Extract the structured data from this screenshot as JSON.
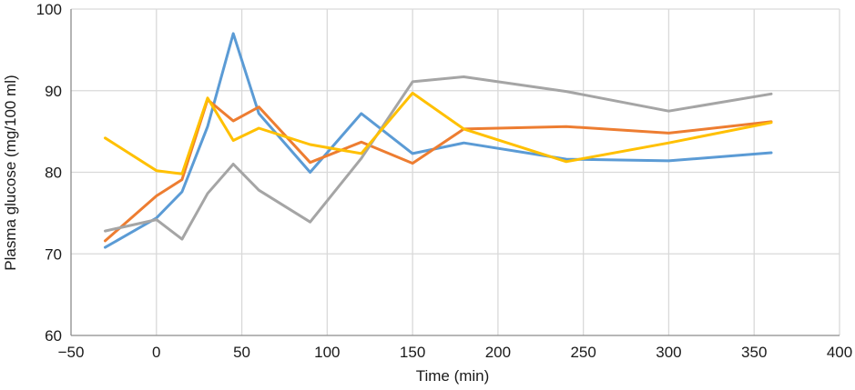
{
  "chart_data": {
    "type": "line",
    "title": "",
    "xlabel": "Time (min)",
    "ylabel": "Plasma glucose (mg/100 ml)",
    "xlim": [
      -50,
      400
    ],
    "ylim": [
      60,
      100
    ],
    "x_ticks": [
      -50,
      0,
      50,
      100,
      150,
      200,
      250,
      300,
      350,
      400
    ],
    "y_ticks": [
      60,
      70,
      80,
      90,
      100
    ],
    "x_tick_labels": [
      "−50",
      "0",
      "50",
      "100",
      "150",
      "200",
      "250",
      "300",
      "350",
      "400"
    ],
    "y_tick_labels": [
      "60",
      "70",
      "80",
      "90",
      "100"
    ],
    "grid": true,
    "legend": "none",
    "series": [
      {
        "color": "#5b9bd5",
        "x": [
          -30,
          0,
          15,
          30,
          45,
          60,
          90,
          120,
          150,
          180,
          240,
          300,
          360
        ],
        "y": [
          70.8,
          74.4,
          77.6,
          85.6,
          97.0,
          87.2,
          80.0,
          87.2,
          82.3,
          83.6,
          81.6,
          81.4,
          82.4
        ]
      },
      {
        "color": "#ed7d31",
        "x": [
          -30,
          0,
          15,
          30,
          45,
          60,
          90,
          120,
          150,
          180,
          240,
          300,
          360
        ],
        "y": [
          71.6,
          77.1,
          79.1,
          88.9,
          86.3,
          88.0,
          81.2,
          83.7,
          81.1,
          85.3,
          85.6,
          84.8,
          86.2
        ]
      },
      {
        "color": "#a5a5a5",
        "x": [
          -30,
          0,
          15,
          30,
          45,
          60,
          90,
          120,
          150,
          180,
          240,
          300,
          360
        ],
        "y": [
          72.8,
          74.2,
          71.8,
          77.4,
          81.0,
          77.8,
          73.9,
          81.7,
          91.1,
          91.7,
          89.9,
          87.5,
          89.6
        ]
      },
      {
        "color": "#ffc000",
        "x": [
          -30,
          0,
          15,
          30,
          45,
          60,
          90,
          120,
          150,
          180,
          240,
          300,
          360
        ],
        "y": [
          84.2,
          80.2,
          79.8,
          89.1,
          83.9,
          85.4,
          83.4,
          82.3,
          89.7,
          85.3,
          81.3,
          83.6,
          86.1
        ]
      }
    ]
  }
}
